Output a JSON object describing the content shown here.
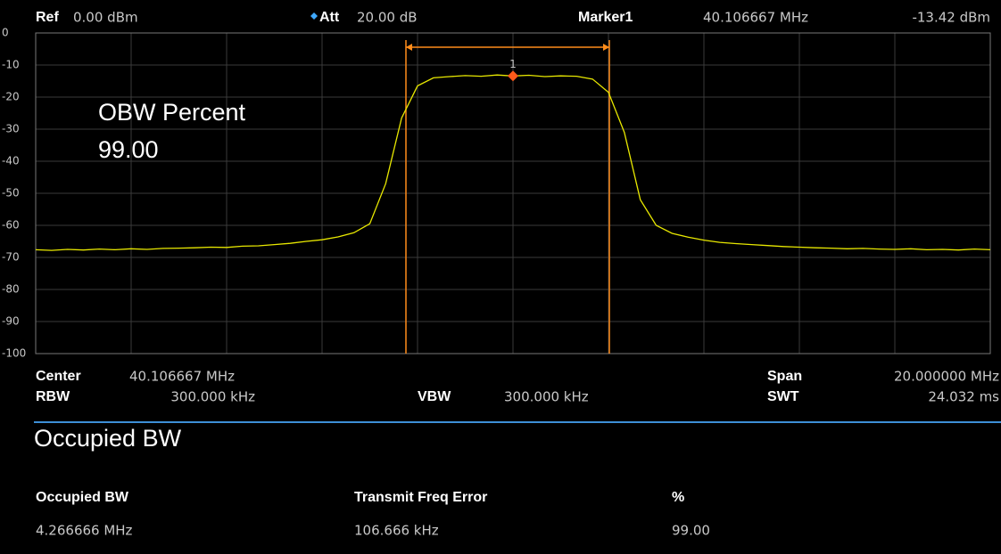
{
  "header": {
    "ref_label": "Ref",
    "ref_value": "0.00 dBm",
    "att_label": "Att",
    "att_value": "20.00 dB",
    "marker_label": "Marker1",
    "marker_freq": "40.106667 MHz",
    "marker_amplitude": "-13.42 dBm"
  },
  "chart_data": {
    "type": "line",
    "color": "#e8e800",
    "values": [
      -67.6,
      -67.8,
      -67.5,
      -67.7,
      -67.4,
      -67.6,
      -67.3,
      -67.5,
      -67.2,
      -67.1,
      -67.0,
      -66.8,
      -66.9,
      -66.5,
      -66.4,
      -66.0,
      -65.6,
      -65.0,
      -64.5,
      -63.6,
      -62.3,
      -59.5,
      -47.0,
      -26.5,
      -16.5,
      -14.0,
      -13.6,
      -13.3,
      -13.5,
      -13.1,
      -13.42,
      -13.2,
      -13.6,
      -13.4,
      -13.5,
      -14.4,
      -18.5,
      -31.0,
      -52.0,
      -60.0,
      -62.5,
      -63.7,
      -64.6,
      -65.3,
      -65.7,
      -66.0,
      -66.3,
      -66.6,
      -66.8,
      -67.0,
      -67.1,
      -67.3,
      -67.2,
      -67.4,
      -67.5,
      -67.3,
      -67.6,
      -67.5,
      -67.7,
      -67.4,
      -67.6
    ],
    "ylim": [
      -100,
      0
    ],
    "yticks": [
      0,
      -10,
      -20,
      -30,
      -40,
      -50,
      -60,
      -70,
      -80,
      -90,
      -100
    ],
    "grid": true,
    "annotations": [
      "OBW Percent",
      "99.00"
    ],
    "marker": {
      "label": "1",
      "value": -13.42
    }
  },
  "settings": {
    "center_label": "Center",
    "center_value": "40.106667 MHz",
    "rbw_label": "RBW",
    "rbw_value": "300.000 kHz",
    "vbw_label": "VBW",
    "vbw_value": "300.000 kHz",
    "span_label": "Span",
    "span_value": "20.000000 MHz",
    "swt_label": "SWT",
    "swt_value": "24.032 ms"
  },
  "results": {
    "title": "Occupied BW",
    "columns": [
      "Occupied BW",
      "Transmit Freq Error",
      "%"
    ],
    "values": [
      "4.266666 MHz",
      "106.666 kHz",
      "99.00"
    ]
  }
}
